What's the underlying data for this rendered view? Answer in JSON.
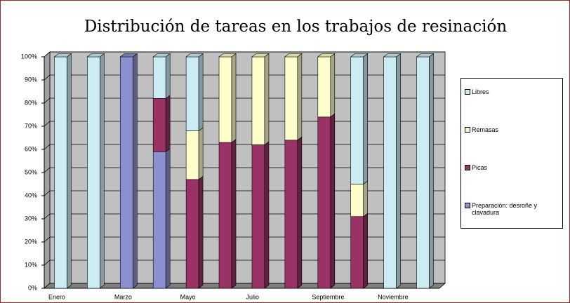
{
  "chart_data": {
    "type": "bar",
    "stacked": true,
    "title": "Distribución de tareas en  los trabajos de resinación",
    "categories": [
      "Enero",
      null,
      "Marzo",
      null,
      "Mayo",
      null,
      "Julio",
      null,
      "Septiembre",
      null,
      "Noviembre",
      null
    ],
    "series": [
      {
        "name": "Preparación: desroñe y clavadura",
        "color": "#8c8fd0",
        "values": [
          0,
          0,
          100,
          59,
          0,
          0,
          0,
          0,
          0,
          0,
          0,
          0
        ]
      },
      {
        "name": "Picas",
        "color": "#993366",
        "values": [
          0,
          0,
          0,
          23,
          47,
          63,
          62,
          64,
          74,
          31,
          0,
          0
        ]
      },
      {
        "name": "Remasas",
        "color": "#ffffcc",
        "values": [
          0,
          0,
          0,
          0,
          21,
          37,
          38,
          36,
          26,
          14,
          0,
          0
        ]
      },
      {
        "name": "Libres",
        "color": "#ccecf4",
        "values": [
          100,
          100,
          0,
          18,
          32,
          0,
          0,
          0,
          0,
          55,
          100,
          100
        ]
      }
    ],
    "ylim": [
      0,
      100
    ],
    "yticks": [
      {
        "value": 0,
        "label": "0%"
      },
      {
        "value": 10,
        "label": "10%"
      },
      {
        "value": 20,
        "label": "20%"
      },
      {
        "value": 30,
        "label": "30%"
      },
      {
        "value": 40,
        "label": "40%"
      },
      {
        "value": 50,
        "label": "50%"
      },
      {
        "value": 60,
        "label": "60%"
      },
      {
        "value": 70,
        "label": "70%"
      },
      {
        "value": 80,
        "label": "80%"
      },
      {
        "value": 90,
        "label": "90%"
      },
      {
        "value": 100,
        "label": "100%"
      }
    ],
    "grid": true,
    "legend": "right"
  }
}
